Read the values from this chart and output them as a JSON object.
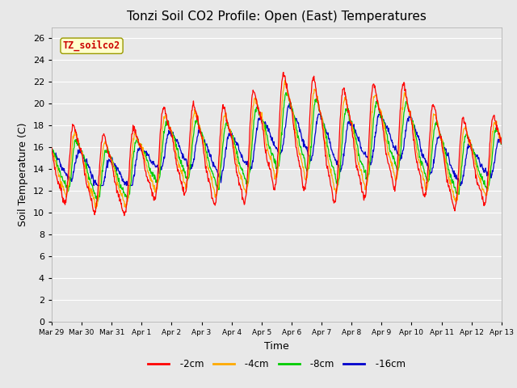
{
  "title": "Tonzi Soil CO2 Profile: Open (East) Temperatures",
  "xlabel": "Time",
  "ylabel": "Soil Temperature (C)",
  "ylim": [
    0,
    27
  ],
  "yticks": [
    0,
    2,
    4,
    6,
    8,
    10,
    12,
    14,
    16,
    18,
    20,
    22,
    24,
    26
  ],
  "colors": {
    "-2cm": "#ff0000",
    "-4cm": "#ffaa00",
    "-8cm": "#00cc00",
    "-16cm": "#0000cc"
  },
  "legend_label": "TZ_soilco2",
  "legend_box_color": "#ffffcc",
  "legend_box_edge": "#aaaa00",
  "plot_bg_color": "#e8e8e8",
  "grid_color": "#ffffff",
  "title_fontsize": 11,
  "axis_fontsize": 9,
  "tick_fontsize": 8,
  "num_days": 15,
  "x_tick_labels": [
    "Mar 29",
    "Mar 30",
    "Mar 31",
    "Apr 1",
    "Apr 2",
    "Apr 3",
    "Apr 4",
    "Apr 5",
    "Apr 6",
    "Apr 7",
    "Apr 8",
    "Apr 9",
    "Apr 10",
    "Apr 11",
    "Apr 12",
    "Apr 13"
  ],
  "x_tick_positions": [
    0,
    1,
    2,
    3,
    4,
    5,
    6,
    7,
    8,
    9,
    10,
    11,
    12,
    13,
    14,
    15
  ]
}
